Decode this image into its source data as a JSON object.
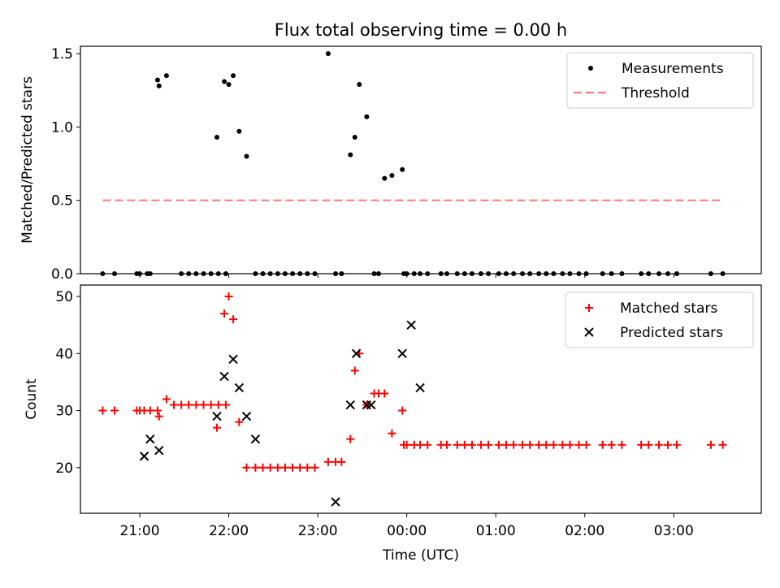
{
  "chart_data": [
    {
      "type": "scatter",
      "title": "Flux total observing time = 0.00 h",
      "xlabel": "",
      "ylabel": "Matched/Predicted stars",
      "ylim": [
        0,
        1.55
      ],
      "xlim": [
        "20:20",
        "03:59"
      ],
      "yticks": [
        "0.0",
        "0.5",
        "1.0",
        "1.5"
      ],
      "legend": {
        "placement": "top-right",
        "entries": [
          "Measurements",
          "Threshold"
        ]
      },
      "colors": {
        "measurements": "#000000",
        "threshold": "#ff7f7f"
      },
      "series": [
        {
          "name": "Measurements",
          "x": [
            "20:35",
            "20:43",
            "20:58",
            "21:00",
            "21:05",
            "21:07",
            "21:12",
            "21:13",
            "21:18",
            "21:28",
            "21:33",
            "21:38",
            "21:43",
            "21:48",
            "21:53",
            "21:58",
            "21:52",
            "21:57",
            "22:00",
            "22:03",
            "22:07",
            "22:12",
            "22:18",
            "22:23",
            "22:28",
            "22:33",
            "22:38",
            "22:43",
            "22:48",
            "22:53",
            "22:58",
            "23:07",
            "23:12",
            "23:16",
            "23:22",
            "23:25",
            "23:28",
            "23:33",
            "23:38",
            "23:41",
            "23:45",
            "23:50",
            "23:57",
            "23:58",
            "00:00",
            "00:05",
            "00:09",
            "00:14",
            "00:23",
            "00:27",
            "00:34",
            "00:39",
            "00:44",
            "00:50",
            "00:55",
            "01:02",
            "01:07",
            "01:12",
            "01:18",
            "01:23",
            "01:29",
            "01:34",
            "01:39",
            "01:45",
            "01:50",
            "01:56",
            "02:01",
            "02:12",
            "02:18",
            "02:25",
            "02:38",
            "02:43",
            "02:50",
            "02:56",
            "03:02",
            "03:25",
            "03:33"
          ],
          "y": [
            0,
            0,
            0,
            0,
            0,
            0,
            1.32,
            1.28,
            1.35,
            0,
            0,
            0,
            0,
            0,
            0,
            0,
            0.93,
            1.31,
            1.29,
            1.35,
            0.97,
            0.8,
            0,
            0,
            0,
            0,
            0,
            0,
            0,
            0,
            0,
            1.5,
            0,
            0,
            0.81,
            0.93,
            1.29,
            1.07,
            0,
            0,
            0.65,
            0.67,
            0.71,
            0,
            0,
            0,
            0,
            0,
            0,
            0,
            0,
            0,
            0,
            0,
            0,
            0,
            0,
            0,
            0,
            0,
            0,
            0,
            0,
            0,
            0,
            0,
            0,
            0,
            0,
            0,
            0,
            0,
            0,
            0,
            0,
            0,
            0
          ]
        },
        {
          "name": "Threshold",
          "x": [
            "20:35",
            "03:33"
          ],
          "y": [
            0.5,
            0.5
          ]
        }
      ]
    },
    {
      "type": "scatter",
      "title": "",
      "xlabel": "Time (UTC)",
      "ylabel": "Count",
      "ylim": [
        12,
        52
      ],
      "xlim": [
        "20:20",
        "03:59"
      ],
      "yticks": [
        "20",
        "30",
        "40",
        "50"
      ],
      "xticks": [
        "21:00",
        "22:00",
        "23:00",
        "00:00",
        "01:00",
        "02:00",
        "03:00"
      ],
      "legend": {
        "placement": "top-right",
        "entries": [
          "Matched stars",
          "Predicted stars"
        ]
      },
      "colors": {
        "matched": "#ff0000",
        "predicted": "#000000"
      },
      "series": [
        {
          "name": "Matched stars",
          "marker": "plus",
          "x": [
            "20:35",
            "20:43",
            "20:58",
            "21:00",
            "21:03",
            "21:07",
            "21:12",
            "21:13",
            "21:18",
            "21:23",
            "21:28",
            "21:33",
            "21:38",
            "21:43",
            "21:48",
            "21:53",
            "21:58",
            "21:52",
            "21:57",
            "22:00",
            "22:03",
            "22:07",
            "22:12",
            "22:18",
            "22:23",
            "22:28",
            "22:33",
            "22:38",
            "22:43",
            "22:48",
            "22:53",
            "22:58",
            "23:07",
            "23:12",
            "23:16",
            "23:22",
            "23:25",
            "23:28",
            "23:33",
            "23:38",
            "23:41",
            "23:45",
            "23:50",
            "23:57",
            "23:58",
            "00:00",
            "00:05",
            "00:09",
            "00:14",
            "00:23",
            "00:27",
            "00:34",
            "00:39",
            "00:44",
            "00:50",
            "00:55",
            "01:02",
            "01:07",
            "01:12",
            "01:18",
            "01:23",
            "01:29",
            "01:34",
            "01:39",
            "01:45",
            "01:50",
            "01:56",
            "02:01",
            "02:12",
            "02:18",
            "02:25",
            "02:38",
            "02:43",
            "02:50",
            "02:56",
            "03:02",
            "03:25",
            "03:33"
          ],
          "y": [
            30,
            30,
            30,
            30,
            30,
            30,
            30,
            29,
            32,
            31,
            31,
            31,
            31,
            31,
            31,
            31,
            31,
            27,
            47,
            50,
            46,
            28,
            20,
            20,
            20,
            20,
            20,
            20,
            20,
            20,
            20,
            20,
            21,
            21,
            21,
            25,
            37,
            40,
            31,
            33,
            33,
            33,
            26,
            30,
            24,
            24,
            24,
            24,
            24,
            24,
            24,
            24,
            24,
            24,
            24,
            24,
            24,
            24,
            24,
            24,
            24,
            24,
            24,
            24,
            24,
            24,
            24,
            24,
            24,
            24,
            24,
            24,
            24,
            24,
            24,
            24,
            24,
            24
          ]
        },
        {
          "name": "Predicted stars",
          "marker": "x",
          "x": [
            "21:03",
            "21:07",
            "21:13",
            "21:52",
            "21:57",
            "22:03",
            "22:07",
            "22:12",
            "22:18",
            "23:12",
            "23:22",
            "23:26",
            "23:33",
            "23:36",
            "23:57",
            "00:03",
            "00:09"
          ],
          "y": [
            22,
            25,
            23,
            29,
            36,
            39,
            34,
            29,
            25,
            14,
            31,
            40,
            31,
            31,
            40,
            45,
            34
          ]
        }
      ]
    }
  ]
}
